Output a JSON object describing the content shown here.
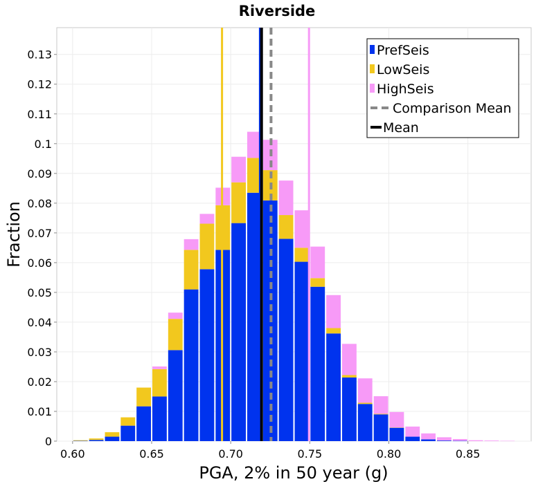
{
  "chart_data": {
    "type": "bar",
    "stacked": true,
    "title": "Riverside",
    "xlabel": "PGA, 2% in 50 year (g)",
    "ylabel": "Fraction",
    "xlim": [
      0.59,
      0.89
    ],
    "ylim": [
      0,
      0.139
    ],
    "bin_width": 0.01,
    "grid": true,
    "legend_position": "top-right",
    "x_ticks": [
      0.6,
      0.65,
      0.7,
      0.75,
      0.8,
      0.85
    ],
    "x_tick_labels": [
      "0.60",
      "0.65",
      "0.70",
      "0.75",
      "0.80",
      "0.85"
    ],
    "y_ticks": [
      0,
      0.01,
      0.02,
      0.03,
      0.04,
      0.05,
      0.06,
      0.07,
      0.08,
      0.09,
      0.1,
      0.11,
      0.12,
      0.13
    ],
    "y_tick_labels": [
      "0",
      "0.01",
      "0.02",
      "0.03",
      "0.04",
      "0.05",
      "0.06",
      "0.07",
      "0.08",
      "0.09",
      "0.1",
      "0.11",
      "0.12",
      "0.13"
    ],
    "bin_centers": [
      0.605,
      0.615,
      0.625,
      0.635,
      0.645,
      0.655,
      0.665,
      0.675,
      0.685,
      0.695,
      0.705,
      0.715,
      0.725,
      0.735,
      0.745,
      0.755,
      0.765,
      0.775,
      0.785,
      0.795,
      0.805,
      0.815,
      0.825,
      0.835,
      0.845,
      0.855,
      0.865,
      0.875
    ],
    "series": [
      {
        "name": "PrefSeis",
        "color": "#0033ee",
        "values": [
          0.0001,
          0.0004,
          0.0015,
          0.0052,
          0.0117,
          0.015,
          0.0306,
          0.051,
          0.0578,
          0.0643,
          0.0733,
          0.0835,
          0.0809,
          0.068,
          0.0603,
          0.0519,
          0.0362,
          0.0214,
          0.0125,
          0.009,
          0.0045,
          0.0015,
          0.0006,
          0.0002,
          0.0001,
          0.0,
          0.0,
          0.0
        ]
      },
      {
        "name": "LowSeis",
        "color": "#f2c81e",
        "values": [
          0.0002,
          0.0005,
          0.0015,
          0.0028,
          0.0063,
          0.0092,
          0.0105,
          0.0133,
          0.0153,
          0.015,
          0.0137,
          0.0117,
          0.0102,
          0.008,
          0.0047,
          0.0029,
          0.0018,
          0.0008,
          0.0004,
          0.0002,
          0.0001,
          0.0,
          0.0,
          0.0,
          0.0,
          0.0,
          0.0,
          0.0
        ]
      },
      {
        "name": "HighSeis",
        "color": "#f79af7",
        "values": [
          0.0,
          0.0,
          0.0,
          0.0,
          0.0,
          0.0009,
          0.0021,
          0.0036,
          0.0033,
          0.0059,
          0.0086,
          0.0088,
          0.0102,
          0.0116,
          0.0126,
          0.0106,
          0.0111,
          0.0105,
          0.0082,
          0.0059,
          0.0052,
          0.0034,
          0.002,
          0.0011,
          0.0006,
          0.0003,
          0.0002,
          0.0001
        ]
      }
    ],
    "vertical_lines": [
      {
        "name": "LowSeis mean",
        "x": 0.6945,
        "color": "#f2c81e",
        "style": "solid"
      },
      {
        "name": "PrefSeis mean",
        "x": 0.7185,
        "color": "#0033ee",
        "style": "solid"
      },
      {
        "name": "Mean",
        "x": 0.7195,
        "color": "#000000",
        "style": "solid"
      },
      {
        "name": "Comparison Mean",
        "x": 0.7255,
        "color": "#888888",
        "style": "dashed"
      },
      {
        "name": "HighSeis mean",
        "x": 0.7495,
        "color": "#f79af7",
        "style": "solid"
      }
    ],
    "legend": [
      {
        "label": "PrefSeis",
        "kind": "box",
        "color": "#0033ee"
      },
      {
        "label": "LowSeis",
        "kind": "box",
        "color": "#f2c81e"
      },
      {
        "label": "HighSeis",
        "kind": "box",
        "color": "#f79af7"
      },
      {
        "label": "Comparison Mean",
        "kind": "dashed",
        "color": "#888888"
      },
      {
        "label": "Mean",
        "kind": "solid",
        "color": "#000000"
      }
    ]
  }
}
